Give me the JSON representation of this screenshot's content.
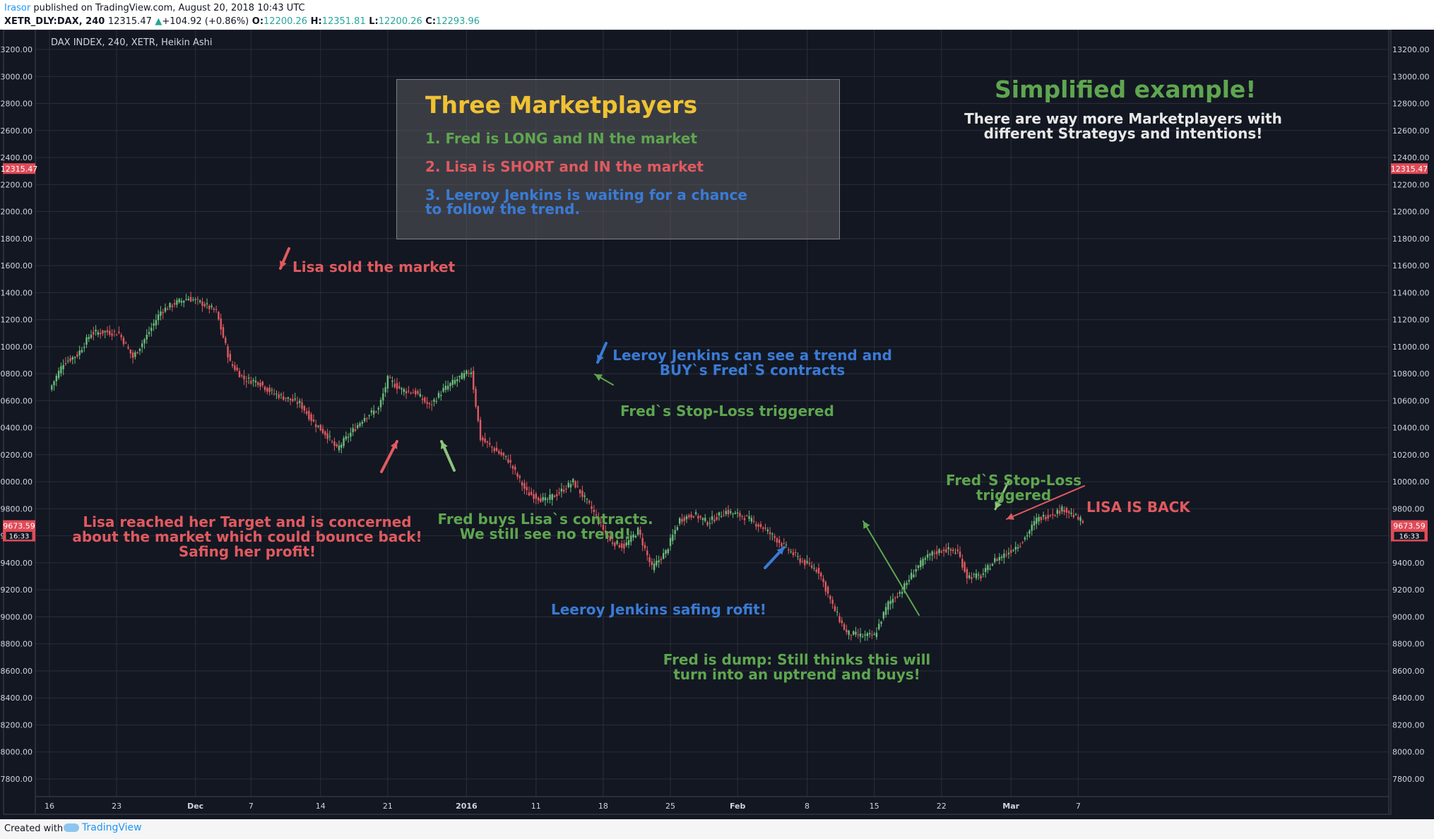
{
  "header": {
    "author": "Irasor",
    "published": "published on TradingView.com, August 20, 2018 10:43 UTC",
    "symbol": "XETR_DLY:DAX, 240",
    "last_price": "12315.47",
    "change": "+104.92 (+0.86%)",
    "open_label": "O:",
    "open_value": "12200.26",
    "high_label": "H:",
    "high_value": "12351.81",
    "low_label": "L:",
    "low_value": "12200.26",
    "close_label": "C:",
    "close_value": "12293.96"
  },
  "colors": {
    "background": "#131722",
    "grid": "#2a2e39",
    "up_candle": "#6bbd7a",
    "down_candle": "#e05a5f",
    "price_tag": "#e04b58"
  },
  "chart_data": {
    "type": "candlestick",
    "title": "DAX INDEX, 240, XETR, Heikin Ashi",
    "yaxis": {
      "min": 7700,
      "max": 13250,
      "ticks": [
        "13200.00",
        "13000.00",
        "12800.00",
        "12600.00",
        "12400.00",
        "12200.00",
        "12000.00",
        "11800.00",
        "11600.00",
        "11400.00",
        "11200.00",
        "11000.00",
        "10800.00",
        "10600.00",
        "10400.00",
        "10200.00",
        "10000.00",
        "9800.00",
        "9600.00",
        "9400.00",
        "9200.00",
        "9000.00",
        "8800.00",
        "8600.00",
        "8400.00",
        "8200.00",
        "8000.00",
        "7800.00"
      ],
      "price_tags": [
        {
          "value": 12315.47,
          "label": "12315.47"
        },
        {
          "value": 9673.59,
          "label": "9673.59",
          "sub": "16:33"
        }
      ]
    },
    "xaxis": {
      "ticks": [
        {
          "label": "16",
          "bold": false,
          "idx": 0
        },
        {
          "label": "23",
          "bold": false,
          "idx": 29
        },
        {
          "label": "Dec",
          "bold": true,
          "idx": 63
        },
        {
          "label": "7",
          "bold": false,
          "idx": 87
        },
        {
          "label": "14",
          "bold": false,
          "idx": 117
        },
        {
          "label": "21",
          "bold": false,
          "idx": 146
        },
        {
          "label": "2016",
          "bold": true,
          "idx": 180
        },
        {
          "label": "11",
          "bold": false,
          "idx": 210
        },
        {
          "label": "18",
          "bold": false,
          "idx": 239
        },
        {
          "label": "25",
          "bold": false,
          "idx": 268
        },
        {
          "label": "Feb",
          "bold": true,
          "idx": 297
        },
        {
          "label": "8",
          "bold": false,
          "idx": 327
        },
        {
          "label": "15",
          "bold": false,
          "idx": 356
        },
        {
          "label": "22",
          "bold": false,
          "idx": 385
        },
        {
          "label": "Mar",
          "bold": true,
          "idx": 415
        },
        {
          "label": "7",
          "bold": false,
          "idx": 444
        }
      ]
    },
    "anchors": [
      [
        0,
        10680
      ],
      [
        6,
        10880
      ],
      [
        12,
        10940
      ],
      [
        18,
        11100
      ],
      [
        24,
        11110
      ],
      [
        30,
        11100
      ],
      [
        36,
        10920
      ],
      [
        42,
        11080
      ],
      [
        48,
        11260
      ],
      [
        54,
        11320
      ],
      [
        60,
        11360
      ],
      [
        66,
        11320
      ],
      [
        72,
        11260
      ],
      [
        78,
        10880
      ],
      [
        84,
        10760
      ],
      [
        90,
        10740
      ],
      [
        96,
        10660
      ],
      [
        102,
        10620
      ],
      [
        108,
        10580
      ],
      [
        114,
        10440
      ],
      [
        120,
        10340
      ],
      [
        124,
        10240
      ],
      [
        130,
        10360
      ],
      [
        136,
        10480
      ],
      [
        142,
        10540
      ],
      [
        146,
        10760
      ],
      [
        152,
        10680
      ],
      [
        158,
        10660
      ],
      [
        164,
        10560
      ],
      [
        170,
        10680
      ],
      [
        176,
        10760
      ],
      [
        182,
        10820
      ],
      [
        186,
        10320
      ],
      [
        192,
        10240
      ],
      [
        198,
        10160
      ],
      [
        206,
        9920
      ],
      [
        214,
        9860
      ],
      [
        220,
        9920
      ],
      [
        226,
        10000
      ],
      [
        234,
        9800
      ],
      [
        242,
        9560
      ],
      [
        248,
        9520
      ],
      [
        254,
        9640
      ],
      [
        260,
        9360
      ],
      [
        266,
        9480
      ],
      [
        272,
        9720
      ],
      [
        278,
        9760
      ],
      [
        284,
        9700
      ],
      [
        292,
        9780
      ],
      [
        300,
        9740
      ],
      [
        308,
        9660
      ],
      [
        316,
        9540
      ],
      [
        324,
        9420
      ],
      [
        332,
        9340
      ],
      [
        338,
        9080
      ],
      [
        344,
        8880
      ],
      [
        350,
        8860
      ],
      [
        356,
        8860
      ],
      [
        362,
        9100
      ],
      [
        368,
        9200
      ],
      [
        374,
        9360
      ],
      [
        380,
        9460
      ],
      [
        386,
        9500
      ],
      [
        392,
        9480
      ],
      [
        396,
        9300
      ],
      [
        402,
        9300
      ],
      [
        408,
        9420
      ],
      [
        414,
        9480
      ],
      [
        420,
        9560
      ],
      [
        426,
        9720
      ],
      [
        432,
        9760
      ],
      [
        438,
        9800
      ],
      [
        446,
        9700
      ]
    ],
    "annotations": [
      {
        "id": "lisa_sold",
        "text": "Lisa sold the market",
        "color": "red"
      },
      {
        "id": "lisa_target",
        "text": "Lisa reached her Target and is concerned\nabout the market which could bounce back!\nSafing her profit!",
        "color": "red"
      },
      {
        "id": "fred_buys",
        "text": "Fred buys Lisa`s contracts.\nWe still see no trend!",
        "color": "green"
      },
      {
        "id": "leeroy_trend",
        "text": "Leeroy Jenkins can see a trend and\nBUY`s Fred`S contracts",
        "color": "blue"
      },
      {
        "id": "fred_stoploss1",
        "text": "Fred`s Stop-Loss triggered",
        "color": "green"
      },
      {
        "id": "leeroy_profit",
        "text": "Leeroy Jenkins safing rofit!",
        "color": "blue"
      },
      {
        "id": "fred_dump",
        "text": "Fred is dump: Still thinks this will\nturn into an uptrend and buys!",
        "color": "green"
      },
      {
        "id": "fred_stoploss2",
        "text": "Fred`S Stop-Loss\ntriggered",
        "color": "green"
      },
      {
        "id": "lisa_back",
        "text": "LISA IS BACK",
        "color": "red"
      },
      {
        "id": "simplified_title",
        "text": "Simplified example!",
        "color": "green"
      },
      {
        "id": "simplified_sub",
        "text": "There are way more Marketplayers with\ndifferent Strategys and intentions!",
        "color": "white"
      }
    ]
  },
  "infobox": {
    "title": "Three Marketplayers",
    "item1": "1. Fred is LONG and IN the market",
    "item2": "2. Lisa is SHORT and IN the market",
    "item3": "3. Leeroy Jenkins is waiting for a chance\n    to follow the trend."
  },
  "footer": {
    "created_with": "Created with",
    "brand": "TradingView"
  }
}
